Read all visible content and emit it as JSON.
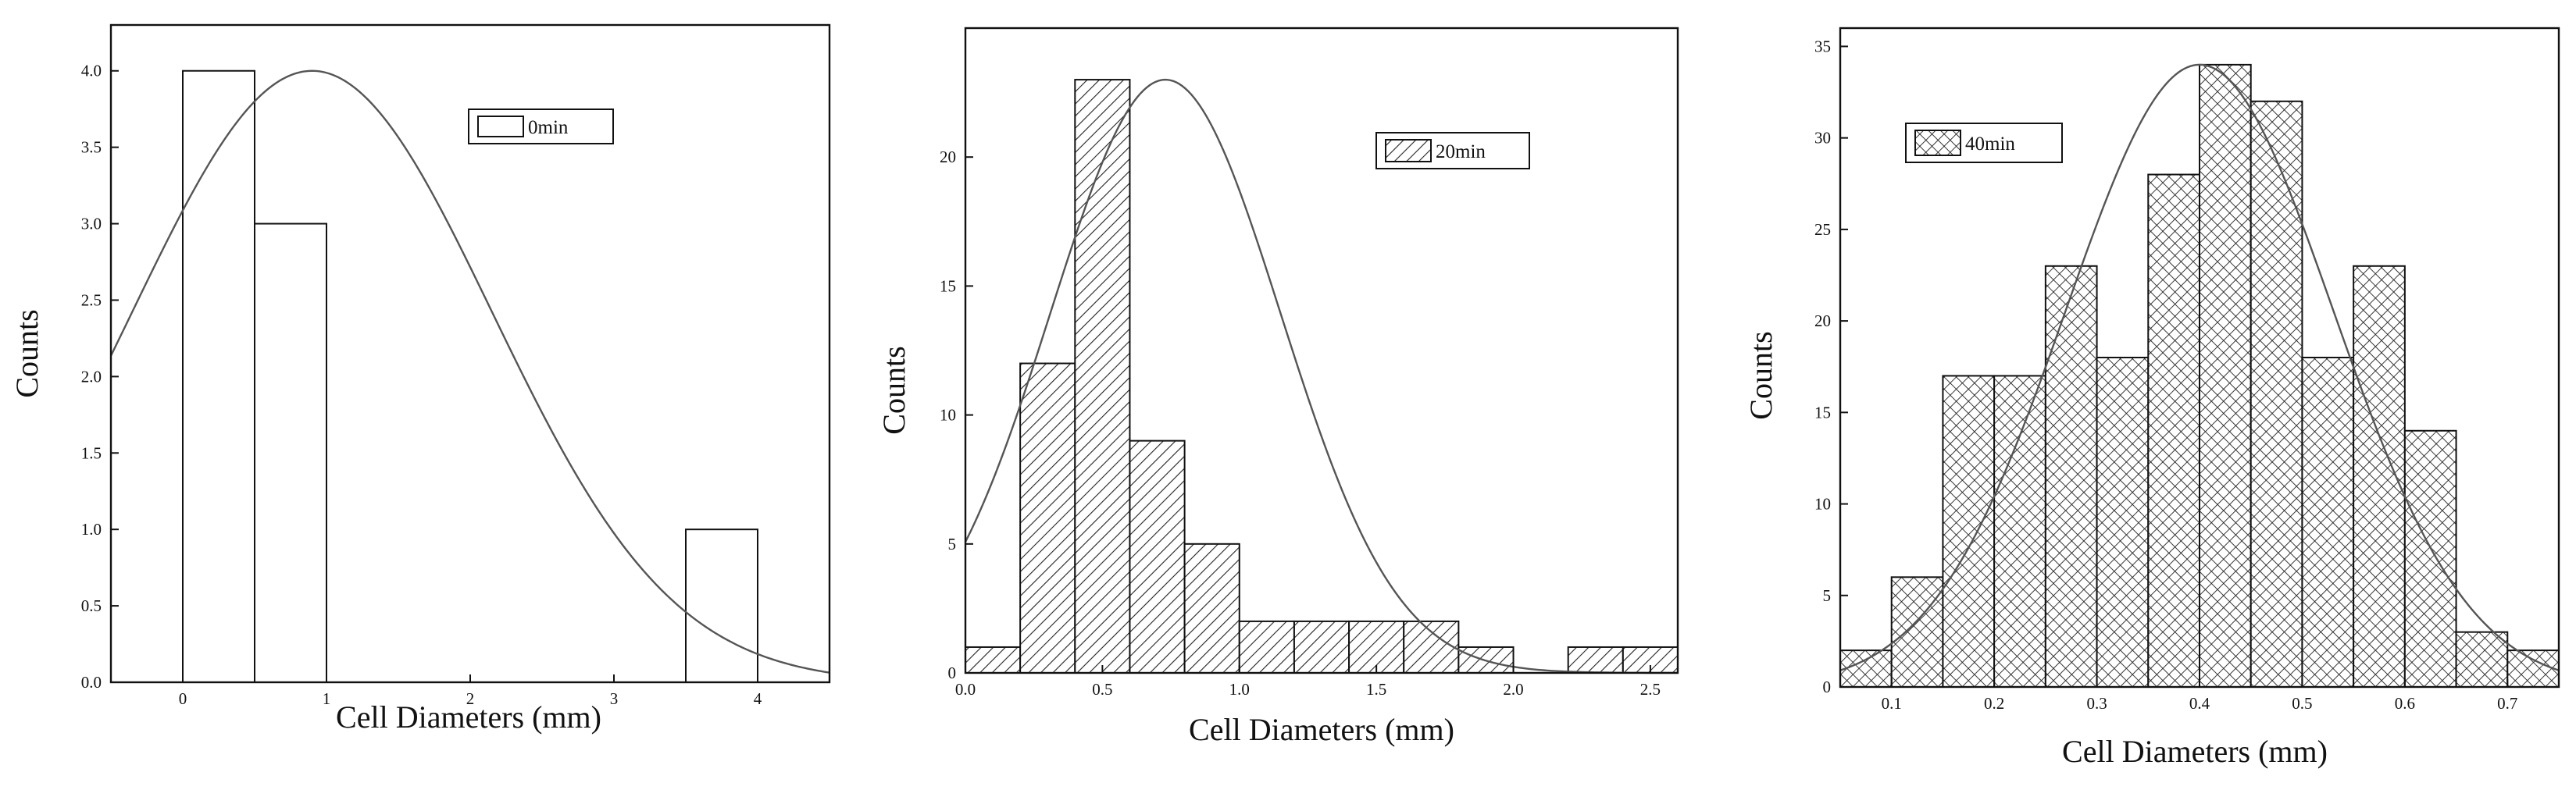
{
  "chart_data": [
    {
      "type": "bar",
      "subtype": "histogram-with-normal-fit",
      "xlabel": "Cell Diameters (mm)",
      "ylabel": "Counts",
      "xlim": [
        -0.5,
        4.5
      ],
      "ylim": [
        0,
        4.3
      ],
      "xticks": [
        "0",
        "1",
        "2",
        "3",
        "4"
      ],
      "yticks": [
        "0.0",
        "0.5",
        "1.0",
        "1.5",
        "2.0",
        "2.5",
        "3.0",
        "3.5",
        "4.0"
      ],
      "bins": [
        {
          "x0": 0.0,
          "x1": 0.5,
          "count": 4
        },
        {
          "x0": 0.5,
          "x1": 1.0,
          "count": 3
        },
        {
          "x0": 3.5,
          "x1": 4.0,
          "count": 1
        }
      ],
      "fit": {
        "type": "normal",
        "mean": 0.9,
        "sd": 1.25,
        "peak": 4.0
      },
      "legend": {
        "label": "0min",
        "pattern": "none",
        "placement": "top-center"
      },
      "grid": false
    },
    {
      "type": "bar",
      "subtype": "histogram-with-normal-fit",
      "xlabel": "Cell Diameters (mm)",
      "ylabel": "Counts",
      "xlim": [
        0,
        2.6
      ],
      "ylim": [
        0,
        25
      ],
      "xticks": [
        "0.0",
        "0.5",
        "1.0",
        "1.5",
        "2.0",
        "2.5"
      ],
      "yticks": [
        "0",
        "5",
        "10",
        "15",
        "20"
      ],
      "bins": [
        {
          "x0": 0.0,
          "x1": 0.2,
          "count": 1
        },
        {
          "x0": 0.2,
          "x1": 0.4,
          "count": 12
        },
        {
          "x0": 0.4,
          "x1": 0.6,
          "count": 23
        },
        {
          "x0": 0.6,
          "x1": 0.8,
          "count": 9
        },
        {
          "x0": 0.8,
          "x1": 1.0,
          "count": 5
        },
        {
          "x0": 1.0,
          "x1": 1.2,
          "count": 2
        },
        {
          "x0": 1.2,
          "x1": 1.4,
          "count": 2
        },
        {
          "x0": 1.4,
          "x1": 1.6,
          "count": 2
        },
        {
          "x0": 1.6,
          "x1": 1.8,
          "count": 2
        },
        {
          "x0": 1.8,
          "x1": 2.0,
          "count": 1
        },
        {
          "x0": 2.2,
          "x1": 2.4,
          "count": 1
        },
        {
          "x0": 2.4,
          "x1": 2.6,
          "count": 1
        }
      ],
      "fit": {
        "type": "normal",
        "mean": 0.73,
        "sd": 0.42,
        "peak": 23
      },
      "legend": {
        "label": "20min",
        "pattern": "diagonal-hatch",
        "placement": "top-right"
      },
      "grid": false
    },
    {
      "type": "bar",
      "subtype": "histogram-with-normal-fit",
      "xlabel": "Cell Diameters (mm)",
      "ylabel": "Counts",
      "xlim": [
        0.05,
        0.75
      ],
      "ylim": [
        0,
        36
      ],
      "xticks": [
        "0.1",
        "0.2",
        "0.3",
        "0.4",
        "0.5",
        "0.6",
        "0.7"
      ],
      "yticks": [
        "0",
        "5",
        "10",
        "15",
        "20",
        "25",
        "30",
        "35"
      ],
      "bins": [
        {
          "x0": 0.05,
          "x1": 0.1,
          "count": 2
        },
        {
          "x0": 0.1,
          "x1": 0.15,
          "count": 6
        },
        {
          "x0": 0.15,
          "x1": 0.2,
          "count": 17
        },
        {
          "x0": 0.2,
          "x1": 0.25,
          "count": 17
        },
        {
          "x0": 0.25,
          "x1": 0.3,
          "count": 23
        },
        {
          "x0": 0.3,
          "x1": 0.35,
          "count": 18
        },
        {
          "x0": 0.35,
          "x1": 0.4,
          "count": 28
        },
        {
          "x0": 0.4,
          "x1": 0.45,
          "count": 34
        },
        {
          "x0": 0.45,
          "x1": 0.5,
          "count": 32
        },
        {
          "x0": 0.5,
          "x1": 0.55,
          "count": 18
        },
        {
          "x0": 0.55,
          "x1": 0.6,
          "count": 23
        },
        {
          "x0": 0.6,
          "x1": 0.65,
          "count": 14
        },
        {
          "x0": 0.65,
          "x1": 0.7,
          "count": 3
        },
        {
          "x0": 0.7,
          "x1": 0.75,
          "count": 2
        }
      ],
      "fit": {
        "type": "normal",
        "mean": 0.4,
        "sd": 0.13,
        "peak": 34
      },
      "legend": {
        "label": "40min",
        "pattern": "cross-hatch",
        "placement": "top-left"
      },
      "grid": false
    }
  ]
}
